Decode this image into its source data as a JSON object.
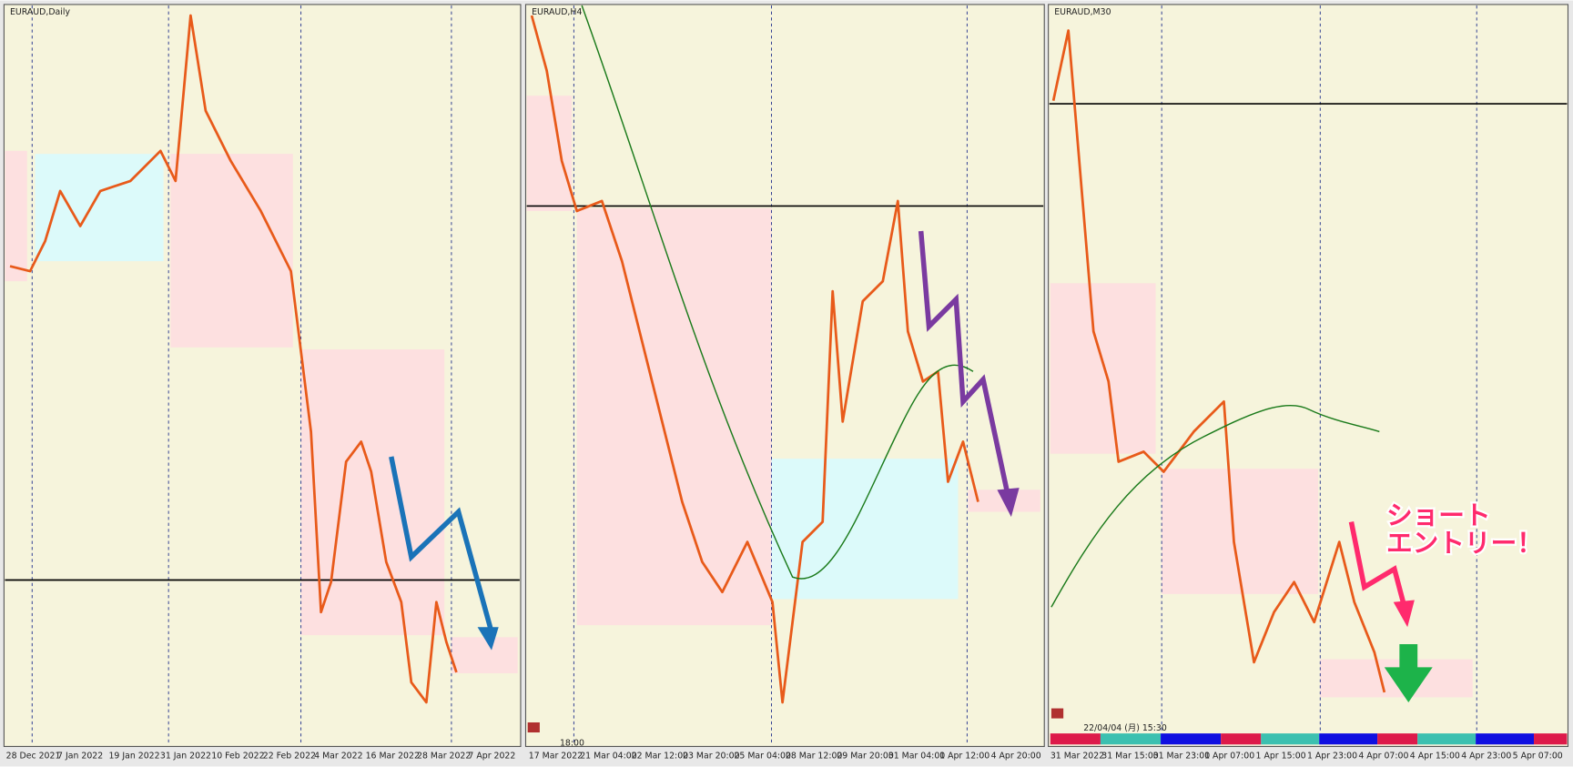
{
  "panels": [
    {
      "title": "EURAUD,Daily",
      "x_labels": [
        "28 Dec 2021",
        "7 Jan 2022",
        "19 Jan 2022",
        "31 Jan 2022",
        "10 Feb 2022",
        "22 Feb 2022",
        "4 Mar 2022",
        "16 Mar 2022",
        "28 Mar 2022",
        "7 Apr 2022"
      ]
    },
    {
      "title": "EURAUD,H4",
      "x_labels": [
        "17 Mar 2022",
        "21 Mar 04:00",
        "22 Mar 12:00",
        "23 Mar 20:00",
        "25 Mar 04:00",
        "28 Mar 12:00",
        "29 Mar 20:00",
        "31 Mar 04:00",
        "1 Apr 12:00",
        "4 Apr 20:00"
      ],
      "time": "18:00"
    },
    {
      "title": "EURAUD,M30",
      "x_labels": [
        "31 Mar 2022",
        "31 Mar 15:00",
        "31 Mar 23:00",
        "1 Apr 07:00",
        "1 Apr 15:00",
        "1 Apr 23:00",
        "4 Apr 07:00",
        "4 Apr 15:00",
        "4 Apr 23:00",
        "5 Apr 07:00"
      ],
      "timestamp": "22/04/04 (月) 15:30",
      "annotation": [
        "ショート",
        "エントリー！"
      ]
    }
  ]
}
